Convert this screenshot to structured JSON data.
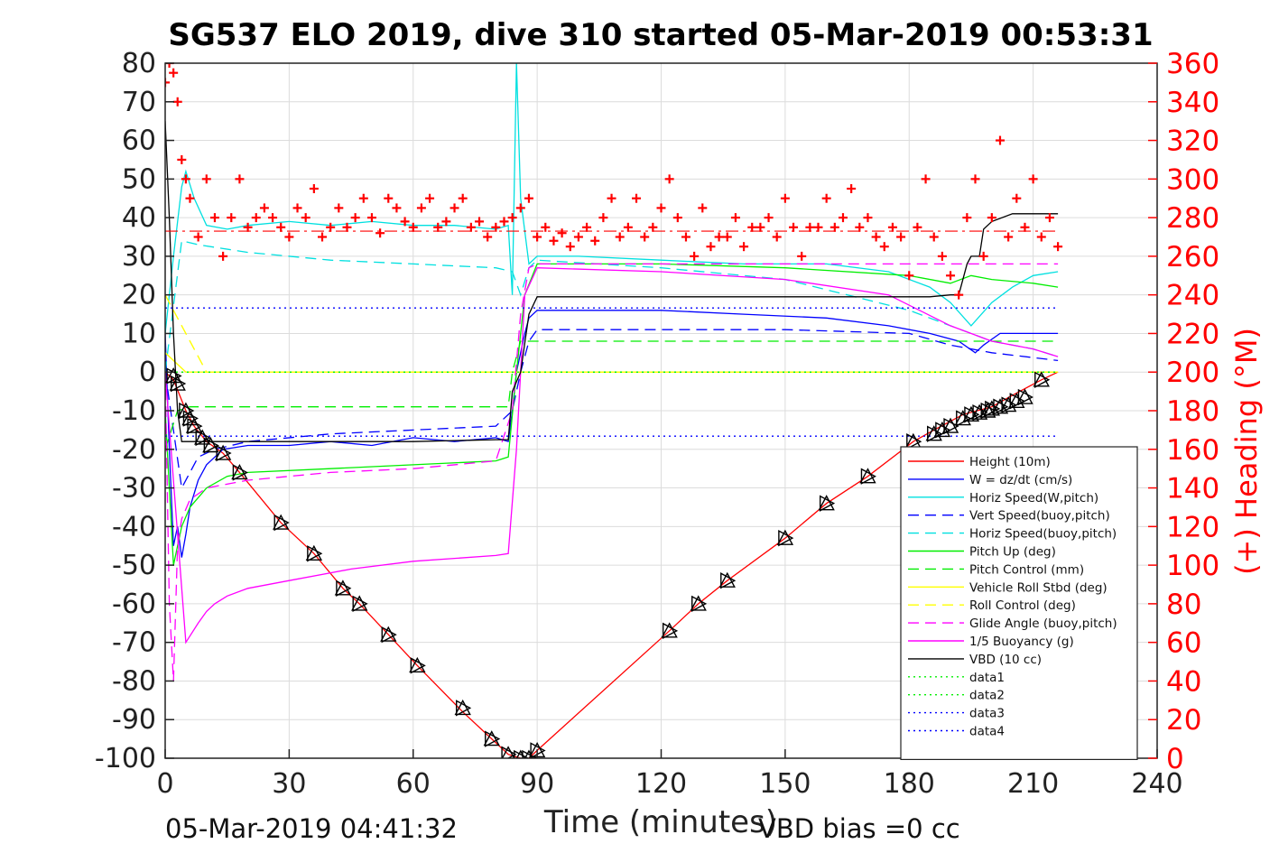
{
  "chart_data": {
    "type": "line",
    "title": "SG537 ELO 2019, dive 310 started 05-Mar-2019 00:53:31",
    "xlabel": "Time (minutes)",
    "ylabel_right": "(+) Heading (°M)",
    "xlim": [
      0,
      240
    ],
    "ylim_left": [
      -100,
      80
    ],
    "ylim_right": [
      0,
      360
    ],
    "x_ticks": [
      0,
      30,
      60,
      90,
      120,
      150,
      180,
      210,
      240
    ],
    "y_ticks_left": [
      80,
      70,
      60,
      50,
      40,
      30,
      20,
      10,
      0,
      -10,
      -20,
      -30,
      -40,
      -50,
      -60,
      -70,
      -80,
      -90,
      -100
    ],
    "y_ticks_right": [
      360,
      340,
      320,
      300,
      280,
      260,
      240,
      220,
      200,
      180,
      160,
      140,
      120,
      100,
      80,
      60,
      40,
      20,
      0
    ],
    "grid": true,
    "legend_placement": "bottom-right",
    "footer_left": "05-Mar-2019 04:41:32",
    "footer_right": "VBD bias =0 cc",
    "colors": {
      "red": "#ff0000",
      "blue": "#0000ff",
      "cyan": "#00e0e0",
      "green": "#00ee00",
      "yellow": "#ffff00",
      "magenta": "#ff00ff",
      "black": "#000000"
    },
    "series": [
      {
        "name": "Height (10m)",
        "color": "#ff0000",
        "style": "solid",
        "x": [
          0,
          2,
          5,
          7,
          10,
          14,
          18,
          28,
          36,
          43,
          47,
          54,
          61,
          72,
          79,
          83,
          86,
          88,
          90,
          122,
          129,
          136,
          150,
          160,
          170,
          181,
          186,
          193,
          200,
          205,
          212,
          216
        ],
        "y": [
          0,
          -2,
          -10,
          -14,
          -18,
          -21,
          -26,
          -39,
          -47,
          -56,
          -60,
          -68,
          -76,
          -88,
          -95,
          -99,
          -100,
          -100,
          -98,
          -67,
          -60,
          -54,
          -43,
          -34,
          -27,
          -18,
          -15,
          -11,
          -9,
          -6,
          -2,
          0
        ]
      },
      {
        "name": "W = dz/dt (cm/s)",
        "color": "#0000ff",
        "style": "solid",
        "x": [
          0,
          1,
          2,
          3,
          4,
          5,
          6,
          8,
          10,
          14,
          20,
          30,
          40,
          50,
          60,
          70,
          80,
          83,
          84,
          85,
          86,
          87,
          88,
          90,
          100,
          120,
          140,
          160,
          175,
          185,
          192,
          196,
          198,
          202,
          210,
          216
        ],
        "y": [
          10,
          -20,
          -45,
          -40,
          -48,
          -42,
          -35,
          -28,
          -24,
          -20,
          -19,
          -19,
          -18,
          -19,
          -17,
          -18,
          -17,
          -18,
          -10,
          0,
          5,
          10,
          14,
          16,
          16,
          16,
          15,
          14,
          12,
          10,
          8,
          5,
          7,
          10,
          10,
          10
        ]
      },
      {
        "name": "Horiz Speed(W,pitch)",
        "color": "#00e0e0",
        "style": "solid",
        "x": [
          0,
          2,
          4,
          5,
          7,
          10,
          15,
          20,
          30,
          40,
          50,
          60,
          70,
          80,
          83,
          84,
          85,
          86,
          88,
          90,
          100,
          120,
          140,
          160,
          175,
          185,
          190,
          195,
          200,
          205,
          210,
          216
        ],
        "y": [
          10,
          30,
          48,
          52,
          45,
          38,
          37,
          38,
          39,
          38,
          39,
          38,
          38,
          37,
          38,
          20,
          80,
          45,
          28,
          30,
          30,
          29,
          28,
          28,
          26,
          22,
          18,
          12,
          18,
          22,
          25,
          26
        ]
      },
      {
        "name": "Vert Speed(buoy,pitch)",
        "color": "#0000ff",
        "style": "dashed",
        "x": [
          0,
          4,
          8,
          12,
          20,
          40,
          60,
          80,
          84,
          86,
          88,
          90,
          120,
          150,
          180,
          190,
          200,
          216
        ],
        "y": [
          0,
          -30,
          -22,
          -20,
          -18,
          -16,
          -15,
          -14,
          -10,
          0,
          8,
          11,
          11,
          11,
          10,
          7,
          5,
          3
        ]
      },
      {
        "name": "Horiz Speed(buoy,pitch)",
        "color": "#00e0e0",
        "style": "dashed",
        "x": [
          0,
          4,
          8,
          20,
          40,
          60,
          80,
          84,
          86,
          88,
          90,
          120,
          150,
          180,
          190,
          200,
          210,
          216
        ],
        "y": [
          0,
          34,
          33,
          31,
          29,
          28,
          27,
          26,
          20,
          27,
          29,
          27,
          24,
          16,
          12,
          8,
          6,
          4
        ]
      },
      {
        "name": "Pitch Up (deg)",
        "color": "#00ee00",
        "style": "solid",
        "x": [
          0,
          2,
          4,
          6,
          10,
          15,
          20,
          40,
          60,
          80,
          83,
          85,
          87,
          90,
          120,
          150,
          180,
          190,
          195,
          200,
          210,
          216
        ],
        "y": [
          -10,
          -50,
          -40,
          -35,
          -30,
          -27,
          -26,
          -25,
          -24,
          -23,
          -22,
          0,
          20,
          28,
          28,
          27,
          25,
          23,
          25,
          24,
          23,
          22
        ]
      },
      {
        "name": "Pitch Control (mm)",
        "color": "#00ee00",
        "style": "dashed",
        "x": [
          0,
          3,
          6,
          10,
          20,
          40,
          60,
          80,
          83,
          84,
          86,
          90,
          120,
          150,
          180,
          216
        ],
        "y": [
          -20,
          -10,
          -9,
          -9,
          -9,
          -9,
          -9,
          -9,
          -9,
          0,
          8,
          8,
          8,
          8,
          8,
          8
        ]
      },
      {
        "name": "Vehicle Roll Stbd (deg)",
        "color": "#ffff00",
        "style": "solid",
        "x": [
          0,
          5,
          10,
          15,
          30,
          60,
          80,
          85,
          90,
          120,
          150,
          180,
          200,
          216
        ],
        "y": [
          5,
          0,
          0,
          0,
          0,
          0,
          0,
          0,
          0,
          0,
          0,
          0,
          0,
          0
        ]
      },
      {
        "name": "Roll Control (deg)",
        "color": "#ffff00",
        "style": "dashed",
        "x": [
          0,
          10,
          30,
          60,
          83,
          84,
          90,
          120,
          150,
          180,
          216
        ],
        "y": [
          20,
          0,
          0,
          0,
          0,
          0,
          0,
          0,
          0,
          0,
          0
        ]
      },
      {
        "name": "Glide Angle (buoy,pitch)",
        "color": "#ff00ff",
        "style": "dashed",
        "x": [
          0,
          1,
          2,
          3,
          4,
          6,
          10,
          20,
          40,
          60,
          80,
          84,
          86,
          88,
          90,
          120,
          150,
          180,
          200,
          216
        ],
        "y": [
          0,
          -60,
          -80,
          -45,
          -38,
          -33,
          -30,
          -28,
          -26,
          -25,
          -23,
          -10,
          15,
          27,
          28,
          28,
          28,
          28,
          28,
          28
        ]
      },
      {
        "name": "1/5 Buoyancy (g)",
        "color": "#ff00ff",
        "style": "solid",
        "x": [
          0,
          5,
          8,
          10,
          12,
          15,
          20,
          30,
          45,
          60,
          80,
          83,
          85,
          87,
          90,
          120,
          150,
          175,
          190,
          200,
          210,
          216
        ],
        "y": [
          0,
          -70,
          -65,
          -62,
          -60,
          -58,
          -56,
          -54,
          -51,
          -49,
          -47.5,
          -47,
          -20,
          20,
          27,
          26,
          24,
          20,
          12,
          8,
          6,
          4
        ]
      },
      {
        "name": "VBD (10 cc)",
        "color": "#000000",
        "style": "solid",
        "x": [
          0,
          1,
          2,
          3,
          4,
          6,
          10,
          20,
          40,
          60,
          80,
          83,
          84,
          86,
          88,
          90,
          120,
          160,
          185,
          190,
          192,
          194,
          195,
          197,
          198,
          200,
          205,
          210,
          216
        ],
        "y": [
          65,
          40,
          10,
          -10,
          -18,
          -18,
          -18,
          -18,
          -18,
          -18,
          -17.5,
          -17.5,
          -5,
          0,
          15,
          19.5,
          19.5,
          19.5,
          19.5,
          20,
          20,
          28,
          30,
          30,
          37,
          39,
          41,
          41,
          41
        ]
      },
      {
        "name": "data1",
        "color": "#00ee00",
        "style": "dotted",
        "x": [
          0,
          216
        ],
        "y": [
          0,
          0
        ]
      },
      {
        "name": "data2",
        "color": "#00ee00",
        "style": "dotted",
        "x": [
          0,
          216
        ],
        "y": [
          0,
          0
        ]
      },
      {
        "name": "data3",
        "color": "#0000ff",
        "style": "dotted",
        "x": [
          0,
          216
        ],
        "y": [
          16.6,
          16.6
        ]
      },
      {
        "name": "data4",
        "color": "#0000ff",
        "style": "dotted",
        "x": [
          0,
          216
        ],
        "y": [
          -16.6,
          -16.6
        ]
      }
    ],
    "heading": {
      "name": "Heading (°M)",
      "marker": "+",
      "color": "#ff0000",
      "axis": "right",
      "mean": 273,
      "x": [
        0,
        1,
        2,
        3,
        4,
        5,
        6,
        8,
        10,
        12,
        14,
        16,
        18,
        20,
        22,
        24,
        26,
        28,
        30,
        32,
        34,
        36,
        38,
        40,
        42,
        44,
        46,
        48,
        50,
        52,
        54,
        56,
        58,
        60,
        62,
        64,
        66,
        68,
        70,
        72,
        74,
        76,
        78,
        80,
        82,
        84,
        86,
        88,
        90,
        92,
        94,
        96,
        98,
        100,
        102,
        104,
        106,
        108,
        110,
        112,
        114,
        116,
        118,
        120,
        122,
        124,
        126,
        128,
        130,
        132,
        134,
        136,
        138,
        140,
        142,
        144,
        146,
        148,
        150,
        152,
        154,
        156,
        158,
        160,
        162,
        164,
        166,
        168,
        170,
        172,
        174,
        176,
        178,
        180,
        182,
        184,
        186,
        188,
        190,
        192,
        194,
        196,
        198,
        200,
        202,
        204,
        206,
        208,
        210,
        212,
        214,
        216
      ],
      "y": [
        350,
        360,
        355,
        340,
        310,
        300,
        290,
        270,
        300,
        280,
        260,
        280,
        300,
        275,
        280,
        285,
        280,
        275,
        270,
        285,
        280,
        295,
        270,
        275,
        285,
        275,
        280,
        290,
        280,
        272,
        290,
        285,
        278,
        275,
        285,
        290,
        275,
        278,
        285,
        290,
        275,
        278,
        270,
        275,
        278,
        280,
        285,
        290,
        270,
        275,
        268,
        272,
        265,
        270,
        275,
        268,
        280,
        290,
        270,
        275,
        290,
        270,
        275,
        285,
        300,
        280,
        270,
        260,
        285,
        265,
        270,
        270,
        280,
        265,
        275,
        275,
        280,
        270,
        290,
        275,
        260,
        275,
        275,
        290,
        275,
        280,
        295,
        275,
        280,
        270,
        265,
        275,
        270,
        250,
        275,
        300,
        270,
        260,
        250,
        240,
        280,
        300,
        260,
        280,
        320,
        270,
        290,
        275,
        300,
        270,
        280,
        265
      ]
    },
    "triangles": {
      "name": "markers",
      "x": [
        2,
        3,
        5,
        6,
        7,
        9,
        11,
        14,
        18,
        28,
        36,
        43,
        47,
        54,
        61,
        72,
        79,
        83,
        86,
        88,
        90,
        122,
        129,
        136,
        150,
        160,
        170,
        181,
        186,
        188,
        190,
        193,
        195,
        197,
        199,
        200,
        202,
        204,
        206,
        208,
        212
      ],
      "y": [
        -1,
        -3,
        -10,
        -12,
        -14,
        -17,
        -19,
        -21,
        -26,
        -39,
        -47,
        -56,
        -60,
        -68,
        -76,
        -87,
        -95,
        -99,
        -100,
        -100,
        -98,
        -67,
        -60,
        -54,
        -43,
        -34,
        -27,
        -18,
        -16,
        -15,
        -14,
        -12,
        -11,
        -10.5,
        -10,
        -9.5,
        -9,
        -8.5,
        -7.5,
        -6.5,
        -2
      ]
    }
  }
}
